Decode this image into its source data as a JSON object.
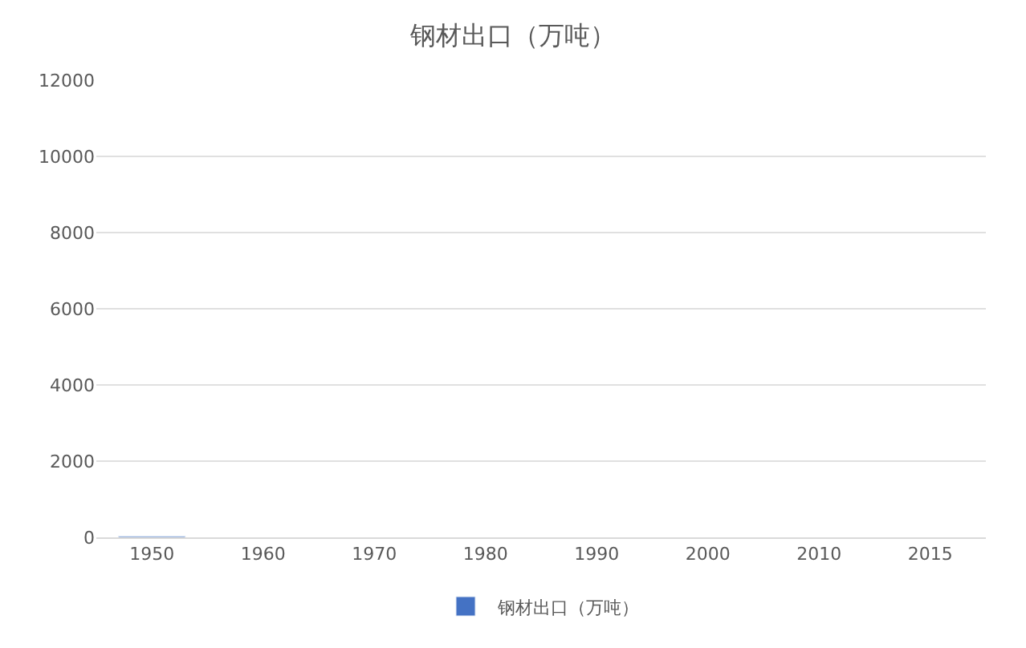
{
  "chart_data": {
    "type": "bar",
    "title": "钢材出口（万吨）",
    "categories": [
      "1950",
      "1960",
      "1970",
      "1980",
      "1990",
      "2000",
      "2010",
      "2015"
    ],
    "series": [
      {
        "name": "钢材出口（万吨）",
        "color": "#4472c4",
        "values": [
          30,
          null,
          null,
          null,
          null,
          null,
          null,
          null
        ]
      }
    ],
    "ylim": [
      0,
      12000
    ],
    "yticks": [
      0,
      2000,
      4000,
      6000,
      8000,
      10000,
      12000
    ],
    "grid": "y",
    "legend": "bottom"
  }
}
